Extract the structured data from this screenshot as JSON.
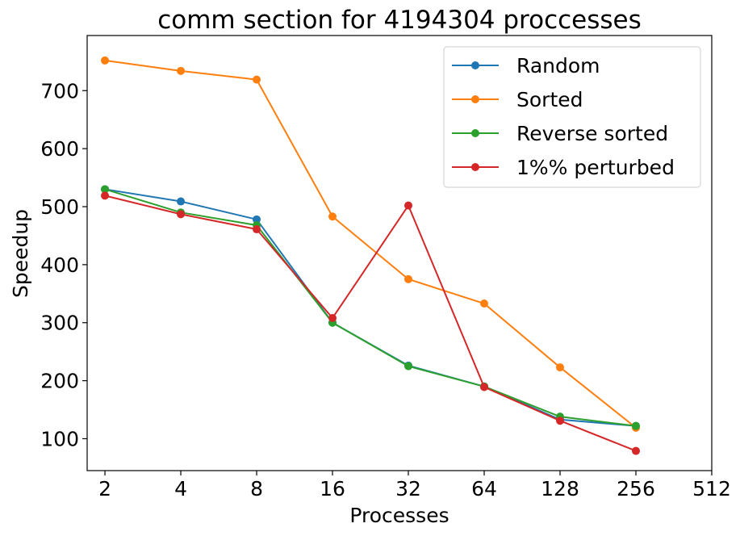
{
  "chart_data": {
    "type": "line",
    "title": "comm section for 4194304 proccesses",
    "xlabel": "Processes",
    "ylabel": "Speedup",
    "x_scale": "log2",
    "x_ticks": [
      "2",
      "4",
      "8",
      "16",
      "32",
      "64",
      "128",
      "256",
      "512"
    ],
    "x": [
      2,
      4,
      8,
      16,
      32,
      64,
      128,
      256
    ],
    "y_ticks": [
      100,
      200,
      300,
      400,
      500,
      600,
      700
    ],
    "ylim": [
      45,
      795
    ],
    "xlim": [
      1.7,
      512
    ],
    "grid": false,
    "legend_position": "upper right",
    "series": [
      {
        "name": "Random",
        "color": "#1f77b4",
        "values": [
          530,
          509,
          478,
          300,
          226,
          190,
          133,
          122
        ]
      },
      {
        "name": "Sorted",
        "color": "#ff7f0e",
        "values": [
          752,
          734,
          719,
          483,
          375,
          333,
          223,
          119
        ]
      },
      {
        "name": "Reverse sorted",
        "color": "#2ca02c",
        "values": [
          530,
          490,
          468,
          300,
          225,
          190,
          138,
          122
        ]
      },
      {
        "name": "1%% perturbed",
        "color": "#d62728",
        "values": [
          519,
          487,
          461,
          308,
          502,
          189,
          131,
          79
        ]
      }
    ]
  }
}
